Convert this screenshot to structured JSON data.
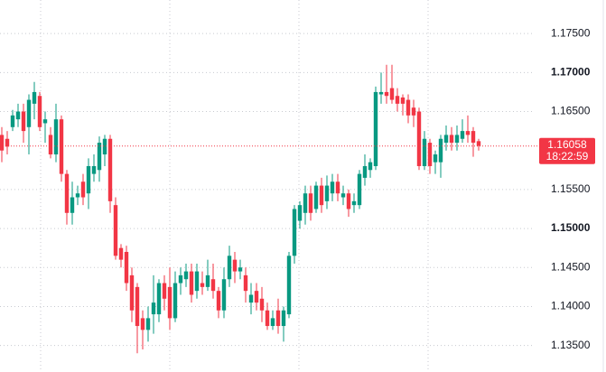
{
  "chart_data": {
    "type": "candlestick",
    "up_color": "#089981",
    "down_color": "#f23645",
    "ylim": [
      1.1316,
      1.1793
    ],
    "yticks": [
      {
        "value": 1.135,
        "label": "1.13500"
      },
      {
        "value": 1.14,
        "label": "1.14000"
      },
      {
        "value": 1.145,
        "label": "1.14500"
      },
      {
        "value": 1.15,
        "label": "1.15000"
      },
      {
        "value": 1.155,
        "label": "1.15500"
      },
      {
        "value": 1.165,
        "label": "1.16500"
      },
      {
        "value": 1.17,
        "label": "1.17000"
      },
      {
        "value": 1.175,
        "label": "1.17500"
      }
    ],
    "grid": true,
    "last_price": 1.16058,
    "time_left": "18:22:59",
    "open": [
      1.162,
      1.1615,
      1.163,
      1.164,
      1.165,
      1.163,
      1.166,
      1.167,
      1.1635,
      1.162,
      1.1595,
      1.164,
      1.157,
      1.152,
      1.154,
      1.156,
      1.1545,
      1.157,
      1.1575,
      1.1595,
      1.1615,
      1.153,
      1.1475,
      1.147,
      1.144,
      1.1425,
      1.1385,
      1.137,
      1.139,
      1.139,
      1.143,
      1.1425,
      1.1385,
      1.143,
      1.1435,
      1.1445,
      1.142,
      1.143,
      1.1425,
      1.1435,
      1.142,
      1.1395,
      1.1435,
      1.146,
      1.1445,
      1.144,
      1.1405,
      1.142,
      1.141,
      1.1395,
      1.1375,
      1.1395,
      1.1375,
      1.139,
      1.1465,
      1.151,
      1.152,
      1.1545,
      1.1525,
      1.1555,
      1.1535,
      1.1545,
      1.156,
      1.154,
      1.1545,
      1.153,
      1.153,
      1.1565,
      1.1575,
      1.158,
      1.1672,
      1.1675,
      1.168,
      1.167,
      1.1668,
      1.1665,
      1.1655,
      1.165,
      1.158,
      1.161,
      1.1585,
      1.1585,
      1.161,
      1.162,
      1.161,
      1.1615,
      1.1625,
      1.1625,
      1.1612
    ],
    "high": [
      1.163,
      1.1625,
      1.1652,
      1.166,
      1.166,
      1.1672,
      1.1688,
      1.1675,
      1.165,
      1.163,
      1.166,
      1.1645,
      1.1575,
      1.156,
      1.1555,
      1.157,
      1.159,
      1.1595,
      1.1618,
      1.162,
      1.162,
      1.154,
      1.148,
      1.1478,
      1.145,
      1.143,
      1.1395,
      1.14,
      1.144,
      1.1435,
      1.144,
      1.145,
      1.1445,
      1.145,
      1.1455,
      1.1455,
      1.1455,
      1.1445,
      1.146,
      1.1455,
      1.1425,
      1.145,
      1.1478,
      1.147,
      1.146,
      1.145,
      1.143,
      1.143,
      1.1425,
      1.1405,
      1.1395,
      1.141,
      1.14,
      1.147,
      1.153,
      1.1535,
      1.1555,
      1.1555,
      1.156,
      1.1565,
      1.1568,
      1.157,
      1.157,
      1.1555,
      1.155,
      1.1545,
      1.1575,
      1.1595,
      1.159,
      1.1682,
      1.17,
      1.171,
      1.171,
      1.168,
      1.1672,
      1.1672,
      1.1665,
      1.1655,
      1.1625,
      1.1615,
      1.16,
      1.162,
      1.1632,
      1.163,
      1.1632,
      1.164,
      1.1645,
      1.163,
      1.1615
    ],
    "low": [
      1.1585,
      1.1595,
      1.1625,
      1.163,
      1.161,
      1.1595,
      1.164,
      1.1625,
      1.161,
      1.159,
      1.1585,
      1.156,
      1.1505,
      1.1505,
      1.153,
      1.153,
      1.1525,
      1.156,
      1.156,
      1.158,
      1.152,
      1.146,
      1.145,
      1.142,
      1.138,
      1.134,
      1.1345,
      1.1355,
      1.1365,
      1.138,
      1.1395,
      1.137,
      1.138,
      1.1415,
      1.1425,
      1.1405,
      1.141,
      1.1415,
      1.142,
      1.141,
      1.1385,
      1.1385,
      1.1425,
      1.143,
      1.1435,
      1.1405,
      1.139,
      1.1395,
      1.138,
      1.137,
      1.137,
      1.1365,
      1.1355,
      1.1385,
      1.1455,
      1.15,
      1.1505,
      1.151,
      1.152,
      1.152,
      1.1525,
      1.1535,
      1.1535,
      1.153,
      1.1515,
      1.152,
      1.1525,
      1.1555,
      1.1565,
      1.1575,
      1.166,
      1.166,
      1.166,
      1.165,
      1.1645,
      1.1635,
      1.163,
      1.1575,
      1.1575,
      1.157,
      1.157,
      1.1565,
      1.16,
      1.16,
      1.16,
      1.161,
      1.161,
      1.1592,
      1.16
    ],
    "close": [
      1.16,
      1.1605,
      1.1645,
      1.165,
      1.1625,
      1.1665,
      1.1675,
      1.163,
      1.164,
      1.1595,
      1.164,
      1.157,
      1.152,
      1.154,
      1.1545,
      1.154,
      1.158,
      1.158,
      1.161,
      1.1615,
      1.1535,
      1.1465,
      1.146,
      1.143,
      1.1395,
      1.1375,
      1.137,
      1.1385,
      1.1405,
      1.143,
      1.141,
      1.1385,
      1.143,
      1.144,
      1.1445,
      1.1415,
      1.1445,
      1.1425,
      1.144,
      1.142,
      1.1395,
      1.1435,
      1.1465,
      1.1445,
      1.145,
      1.142,
      1.1415,
      1.1405,
      1.1395,
      1.1375,
      1.1385,
      1.1375,
      1.1395,
      1.1465,
      1.1525,
      1.153,
      1.1545,
      1.152,
      1.1555,
      1.153,
      1.1555,
      1.156,
      1.1545,
      1.1545,
      1.1525,
      1.1535,
      1.157,
      1.158,
      1.1585,
      1.1675,
      1.1675,
      1.167,
      1.1665,
      1.166,
      1.166,
      1.1645,
      1.1645,
      1.158,
      1.1615,
      1.158,
      1.1595,
      1.1615,
      1.162,
      1.161,
      1.162,
      1.1625,
      1.162,
      1.161,
      1.1606
    ]
  }
}
